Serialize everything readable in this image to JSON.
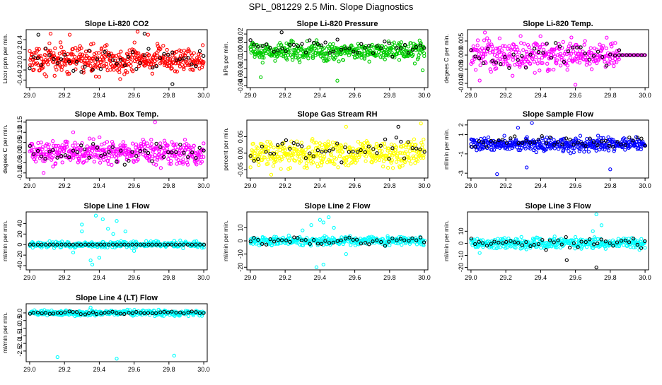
{
  "page": {
    "title": "SPL_081229  2.5 Min. Slope Diagnostics"
  },
  "chart_data": [
    {
      "type": "scatter",
      "title": "Slope Li-820 CO2",
      "ylabel": "Licor ppm per min.",
      "xlim": [
        28.98,
        30.02
      ],
      "ylim": [
        -0.55,
        0.6
      ],
      "xticks": [
        "29.0",
        "29.2",
        "29.4",
        "29.6",
        "29.8",
        "30.0"
      ],
      "yticks": [
        "-0.4",
        "-0.2",
        "0.0",
        "0.2",
        "0.4"
      ],
      "series": [
        {
          "color": "#ff0000",
          "x_range": [
            29.0,
            30.0
          ],
          "center": 0.0,
          "spread": 0.18,
          "n": 420,
          "outliers": [
            [
              29.12,
              0.52
            ],
            [
              29.23,
              0.5
            ],
            [
              29.62,
              0.56
            ],
            [
              29.68,
              0.5
            ],
            [
              29.52,
              -0.38
            ],
            [
              29.38,
              -0.33
            ]
          ]
        },
        {
          "color": "#000000",
          "x_range": [
            29.0,
            30.0
          ],
          "center": 0.0,
          "spread": 0.16,
          "n": 45,
          "outliers": [
            [
              29.05,
              0.5
            ],
            [
              29.66,
              0.52
            ],
            [
              29.82,
              -0.48
            ]
          ]
        }
      ]
    },
    {
      "type": "scatter",
      "title": "Slope Li-820 Pressure",
      "ylabel": "kPa per min.",
      "xlim": [
        28.98,
        30.02
      ],
      "ylim": [
        -0.042,
        0.025
      ],
      "xticks": [
        "29.0",
        "29.2",
        "29.4",
        "29.6",
        "29.8",
        "30.0"
      ],
      "yticks": [
        "-0.04",
        "-0.03",
        "-0.02",
        "-0.01",
        "0.00",
        "0.01",
        "0.02"
      ],
      "series": [
        {
          "color": "#00cc00",
          "x_range": [
            29.0,
            30.0
          ],
          "center": 0.0,
          "spread": 0.007,
          "n": 420,
          "outliers": [
            [
              29.06,
              -0.03
            ],
            [
              29.5,
              -0.034
            ],
            [
              29.99,
              -0.022
            ]
          ]
        },
        {
          "color": "#000000",
          "x_range": [
            29.0,
            30.0
          ],
          "center": 0.004,
          "spread": 0.006,
          "n": 45,
          "outliers": [
            [
              29.18,
              0.022
            ]
          ]
        }
      ]
    },
    {
      "type": "scatter",
      "title": "Slope Li-820 Temp.",
      "ylabel": "degees C per min.",
      "xlim": [
        28.98,
        30.02
      ],
      "ylim": [
        -0.0115,
        0.009
      ],
      "xticks": [
        "29.0",
        "29.2",
        "29.4",
        "29.6",
        "29.8",
        "30.0"
      ],
      "yticks": [
        "-0.010",
        "-0.005",
        "0.000",
        "0.005"
      ],
      "series": [
        {
          "color": "#ff00ff",
          "x_range": [
            29.0,
            29.85
          ],
          "center": 0.0,
          "spread": 0.0038,
          "n": 330,
          "outliers": [
            [
              29.08,
              0.008
            ],
            [
              29.6,
              -0.0105
            ],
            [
              29.05,
              -0.009
            ]
          ]
        },
        {
          "color": "#ff00ff",
          "x_range": [
            29.85,
            30.0
          ],
          "center": 0.0,
          "spread": 0.0,
          "n": 22,
          "outliers": []
        },
        {
          "color": "#000000",
          "x_range": [
            29.0,
            29.85
          ],
          "center": 0.0,
          "spread": 0.003,
          "n": 36,
          "outliers": []
        },
        {
          "color": "#000000",
          "x_range": [
            29.85,
            30.0
          ],
          "center": 0.0,
          "spread": 0.0,
          "n": 8,
          "outliers": []
        }
      ]
    },
    {
      "type": "scatter",
      "title": "Slope Amb. Box Temp.",
      "ylabel": "degees C per min.",
      "xlim": [
        28.98,
        30.02
      ],
      "ylim": [
        -0.125,
        0.16
      ],
      "xticks": [
        "29.0",
        "29.2",
        "29.4",
        "29.6",
        "29.8",
        "30.0"
      ],
      "yticks": [
        "-0.10",
        "-0.05",
        "0.00",
        "0.05",
        "0.10",
        "0.15"
      ],
      "series": [
        {
          "color": "#ff00ff",
          "x_range": [
            29.0,
            30.0
          ],
          "center": 0.0,
          "spread": 0.04,
          "n": 420,
          "outliers": [
            [
              29.72,
              0.15
            ],
            [
              29.08,
              -0.1
            ],
            [
              29.25,
              0.1
            ]
          ]
        },
        {
          "color": "#000000",
          "x_range": [
            29.0,
            30.0
          ],
          "center": 0.0,
          "spread": 0.035,
          "n": 45,
          "outliers": []
        }
      ]
    },
    {
      "type": "scatter",
      "title": "Slope Gas Stream RH",
      "ylabel": "percent per min.",
      "xlim": [
        28.98,
        30.02
      ],
      "ylim": [
        -0.075,
        0.1
      ],
      "xticks": [
        "29.0",
        "29.2",
        "29.4",
        "29.6",
        "29.8",
        "30.0"
      ],
      "yticks": [
        "-0.05",
        "0.00",
        "0.05"
      ],
      "series": [
        {
          "color": "#ffff00",
          "x_range": [
            29.0,
            30.0
          ],
          "center": 0.0,
          "spread": 0.028,
          "n": 420,
          "outliers": [
            [
              29.98,
              0.09
            ],
            [
              29.55,
              0.08
            ],
            [
              29.12,
              -0.065
            ]
          ]
        },
        {
          "color": "#000000",
          "x_range": [
            29.0,
            30.0
          ],
          "center": 0.01,
          "spread": 0.025,
          "n": 45,
          "outliers": [
            [
              29.85,
              0.08
            ]
          ]
        }
      ]
    },
    {
      "type": "scatter",
      "title": "Slope Sample Flow",
      "ylabel": "ml/min per min.",
      "xlim": [
        28.98,
        30.02
      ],
      "ylim": [
        -3.5,
        2.5
      ],
      "xticks": [
        "29.0",
        "29.2",
        "29.4",
        "29.6",
        "29.8",
        "30.0"
      ],
      "yticks": [
        "-3",
        "-1",
        "1",
        "2"
      ],
      "series": [
        {
          "color": "#0000ff",
          "x_range": [
            29.0,
            30.0
          ],
          "center": 0.0,
          "spread": 0.5,
          "n": 420,
          "outliers": [
            [
              29.35,
              2.2
            ],
            [
              29.27,
              1.7
            ],
            [
              29.15,
              -3.1
            ],
            [
              29.32,
              -2.4
            ],
            [
              29.8,
              -2.6
            ]
          ]
        },
        {
          "color": "#000000",
          "x_range": [
            29.0,
            30.0
          ],
          "center": 0.2,
          "spread": 0.45,
          "n": 45,
          "outliers": []
        }
      ]
    },
    {
      "type": "scatter",
      "title": "Slope Line 1 Flow",
      "ylabel": "ml/min per min.",
      "xlim": [
        28.98,
        30.02
      ],
      "ylim": [
        -48,
        62
      ],
      "xticks": [
        "29.0",
        "29.2",
        "29.4",
        "29.6",
        "29.8",
        "30.0"
      ],
      "yticks": [
        "-40",
        "-20",
        "0",
        "20",
        "40"
      ],
      "series": [
        {
          "color": "#00ffff",
          "x_range": [
            29.0,
            30.0
          ],
          "center": 0.0,
          "spread": 4,
          "n": 360,
          "outliers": [
            [
              29.3,
              38
            ],
            [
              29.38,
              55
            ],
            [
              29.42,
              48
            ],
            [
              29.45,
              30
            ],
            [
              29.5,
              45
            ],
            [
              29.55,
              25
            ],
            [
              29.35,
              -30
            ],
            [
              29.36,
              -38
            ],
            [
              29.4,
              -25
            ],
            [
              29.25,
              -15
            ],
            [
              29.6,
              -12
            ],
            [
              29.48,
              20
            ],
            [
              29.3,
              25
            ]
          ]
        },
        {
          "color": "#000000",
          "x_range": [
            29.0,
            30.0
          ],
          "center": 0.0,
          "spread": 0.0,
          "n": 45,
          "outliers": []
        }
      ]
    },
    {
      "type": "scatter",
      "title": "Slope Line 2 Flow",
      "ylabel": "ml/min per min.",
      "xlim": [
        28.98,
        30.02
      ],
      "ylim": [
        -22,
        22
      ],
      "xticks": [
        "29.0",
        "29.2",
        "29.4",
        "29.6",
        "29.8",
        "30.0"
      ],
      "yticks": [
        "-20",
        "-10",
        "0",
        "10"
      ],
      "series": [
        {
          "color": "#00ffff",
          "x_range": [
            29.0,
            30.0
          ],
          "center": 0.0,
          "spread": 2.5,
          "n": 360,
          "outliers": [
            [
              29.35,
              12
            ],
            [
              29.4,
              16
            ],
            [
              29.45,
              18
            ],
            [
              29.48,
              10
            ],
            [
              29.38,
              -20
            ],
            [
              29.42,
              -18
            ],
            [
              29.3,
              8
            ],
            [
              29.55,
              -10
            ],
            [
              29.42,
              14
            ]
          ]
        },
        {
          "color": "#000000",
          "x_range": [
            29.0,
            30.0
          ],
          "center": 0.0,
          "spread": 2.5,
          "n": 45,
          "outliers": []
        }
      ]
    },
    {
      "type": "scatter",
      "title": "Slope Line 3 Flow",
      "ylabel": "ml/min per min.",
      "xlim": [
        28.98,
        30.02
      ],
      "ylim": [
        -22,
        26
      ],
      "xticks": [
        "29.0",
        "29.2",
        "29.4",
        "29.6",
        "29.8",
        "30.0"
      ],
      "yticks": [
        "-20",
        "-10",
        "0",
        "10"
      ],
      "series": [
        {
          "color": "#00ffff",
          "x_range": [
            29.0,
            30.0
          ],
          "center": 0.0,
          "spread": 3,
          "n": 360,
          "outliers": [
            [
              29.72,
              24
            ],
            [
              29.75,
              15
            ],
            [
              29.7,
              10
            ],
            [
              29.05,
              -8
            ]
          ]
        },
        {
          "color": "#000000",
          "x_range": [
            29.0,
            30.0
          ],
          "center": 0.0,
          "spread": 4,
          "n": 45,
          "outliers": [
            [
              29.72,
              -20
            ],
            [
              29.55,
              -14
            ]
          ]
        }
      ]
    },
    {
      "type": "scatter",
      "title": "Slope Line 4 (LT) Flow",
      "ylabel": "ml/min per min.",
      "xlim": [
        28.98,
        30.02
      ],
      "ylim": [
        -3.2,
        0.6
      ],
      "xticks": [
        "29.0",
        "29.2",
        "29.4",
        "29.6",
        "29.8",
        "30.0"
      ],
      "yticks": [
        "-2.5",
        "-2.0",
        "-1.5",
        "-1.0",
        "-0.5",
        "0.0"
      ],
      "series": [
        {
          "color": "#00ffff",
          "x_range": [
            29.0,
            30.0
          ],
          "center": 0.0,
          "spread": 0.12,
          "n": 360,
          "outliers": [
            [
              29.16,
              -2.9
            ],
            [
              29.5,
              -3.0
            ],
            [
              29.83,
              -2.8
            ],
            [
              29.35,
              0.35
            ]
          ]
        },
        {
          "color": "#000000",
          "x_range": [
            29.0,
            30.0
          ],
          "center": 0.0,
          "spread": 0.08,
          "n": 45,
          "outliers": []
        }
      ]
    }
  ]
}
